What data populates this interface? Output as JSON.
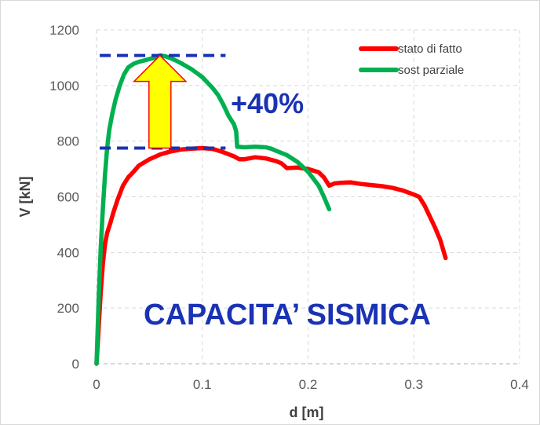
{
  "chart_data": {
    "type": "line",
    "xlabel": "d [m]",
    "ylabel": "V [kN]",
    "xlim": [
      0,
      0.4
    ],
    "ylim": [
      0,
      1200
    ],
    "x_ticks": [
      "0",
      "0.1",
      "0.2",
      "0.3",
      "0.4"
    ],
    "y_ticks": [
      "0",
      "200",
      "400",
      "600",
      "800",
      "1000",
      "1200"
    ],
    "x_tick_values": [
      0,
      0.1,
      0.2,
      0.3,
      0.4
    ],
    "y_tick_values": [
      0,
      200,
      400,
      600,
      800,
      1000,
      1200
    ],
    "grid": "dashed",
    "legend_placement": "top-right",
    "series": [
      {
        "name": "stato di fatto",
        "color": "#ff0000",
        "points": [
          [
            0,
            0
          ],
          [
            0.002,
            130
          ],
          [
            0.004,
            260
          ],
          [
            0.006,
            360
          ],
          [
            0.008,
            430
          ],
          [
            0.01,
            470
          ],
          [
            0.013,
            505
          ],
          [
            0.016,
            545
          ],
          [
            0.02,
            590
          ],
          [
            0.025,
            640
          ],
          [
            0.03,
            670
          ],
          [
            0.035,
            690
          ],
          [
            0.04,
            712
          ],
          [
            0.05,
            735
          ],
          [
            0.06,
            752
          ],
          [
            0.07,
            763
          ],
          [
            0.08,
            770
          ],
          [
            0.09,
            773
          ],
          [
            0.1,
            775
          ],
          [
            0.11,
            772
          ],
          [
            0.12,
            760
          ],
          [
            0.13,
            745
          ],
          [
            0.135,
            735
          ],
          [
            0.14,
            735
          ],
          [
            0.15,
            742
          ],
          [
            0.16,
            738
          ],
          [
            0.17,
            728
          ],
          [
            0.175,
            720
          ],
          [
            0.18,
            703
          ],
          [
            0.19,
            705
          ],
          [
            0.2,
            700
          ],
          [
            0.21,
            688
          ],
          [
            0.215,
            670
          ],
          [
            0.22,
            640
          ],
          [
            0.225,
            648
          ],
          [
            0.23,
            650
          ],
          [
            0.24,
            652
          ],
          [
            0.25,
            646
          ],
          [
            0.26,
            642
          ],
          [
            0.27,
            638
          ],
          [
            0.28,
            632
          ],
          [
            0.29,
            622
          ],
          [
            0.3,
            608
          ],
          [
            0.305,
            600
          ],
          [
            0.31,
            570
          ],
          [
            0.315,
            530
          ],
          [
            0.32,
            490
          ],
          [
            0.325,
            445
          ],
          [
            0.33,
            380
          ]
        ]
      },
      {
        "name": "sost parziale",
        "color": "#00b050",
        "points": [
          [
            0,
            0
          ],
          [
            0.002,
            230
          ],
          [
            0.004,
            420
          ],
          [
            0.006,
            560
          ],
          [
            0.008,
            680
          ],
          [
            0.01,
            775
          ],
          [
            0.012,
            840
          ],
          [
            0.015,
            900
          ],
          [
            0.018,
            950
          ],
          [
            0.022,
            1000
          ],
          [
            0.026,
            1040
          ],
          [
            0.03,
            1065
          ],
          [
            0.035,
            1078
          ],
          [
            0.04,
            1085
          ],
          [
            0.045,
            1090
          ],
          [
            0.05,
            1095
          ],
          [
            0.055,
            1100
          ],
          [
            0.06,
            1108
          ],
          [
            0.065,
            1105
          ],
          [
            0.07,
            1098
          ],
          [
            0.075,
            1090
          ],
          [
            0.08,
            1080
          ],
          [
            0.09,
            1058
          ],
          [
            0.1,
            1030
          ],
          [
            0.11,
            990
          ],
          [
            0.115,
            965
          ],
          [
            0.12,
            930
          ],
          [
            0.125,
            890
          ],
          [
            0.13,
            860
          ],
          [
            0.132,
            835
          ],
          [
            0.133,
            780
          ],
          [
            0.14,
            778
          ],
          [
            0.15,
            780
          ],
          [
            0.16,
            778
          ],
          [
            0.165,
            773
          ],
          [
            0.17,
            765
          ],
          [
            0.18,
            750
          ],
          [
            0.19,
            725
          ],
          [
            0.2,
            690
          ],
          [
            0.21,
            640
          ],
          [
            0.215,
            600
          ],
          [
            0.22,
            555
          ]
        ]
      }
    ],
    "annotations": {
      "percent_label": "+40%",
      "capacity_label": "CAPACITA’ SISMICA",
      "reference_lines": [
        {
          "y": 1108,
          "x_start": 0.003,
          "x_end": 0.122,
          "color": "#1a32b4"
        },
        {
          "y": 775,
          "x_start": 0.003,
          "x_end": 0.122,
          "color": "#1a32b4"
        }
      ],
      "arrow": {
        "x": 0.06,
        "from_y": 775,
        "to_y": 1108,
        "fill": "#ffff00",
        "stroke": "#ff0000"
      }
    }
  }
}
